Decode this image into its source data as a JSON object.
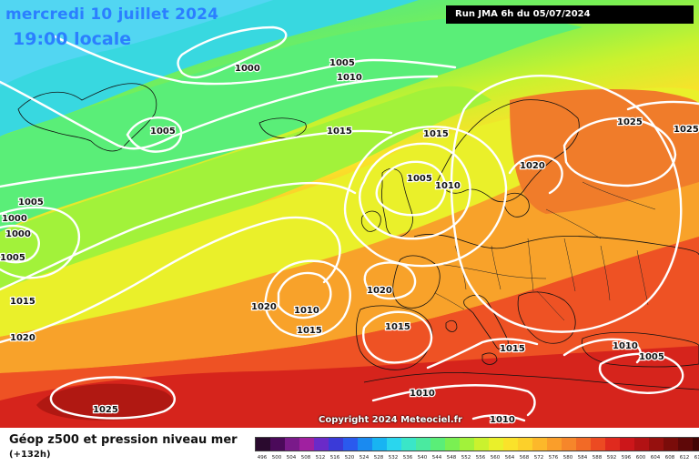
{
  "header": {
    "date": "mercredi 10 juillet 2024",
    "time": "19:00 locale",
    "run": "Run JMA 6h du 05/07/2024"
  },
  "copyright": "Copyright 2024 Meteociel.fr",
  "legend": {
    "title": "Géop z500 et pression niveau mer",
    "subtitle": "(+132h)",
    "ticks": [
      "496",
      "500",
      "504",
      "508",
      "512",
      "516",
      "520",
      "524",
      "528",
      "532",
      "536",
      "540",
      "544",
      "548",
      "552",
      "556",
      "560",
      "564",
      "568",
      "572",
      "576",
      "580",
      "584",
      "588",
      "592",
      "596",
      "600",
      "604",
      "608",
      "612",
      "616"
    ],
    "colors": [
      "#2a0a2e",
      "#4b0a5a",
      "#7a1a8a",
      "#a020a0",
      "#6a2ac8",
      "#3a3ad8",
      "#2a5aee",
      "#1a8af0",
      "#18b4f2",
      "#2ad6ee",
      "#3ae6c8",
      "#4aeaa0",
      "#5aee78",
      "#7af052",
      "#a2f23a",
      "#caf22e",
      "#eaf02a",
      "#fae22a",
      "#fcd02a",
      "#fcb82a",
      "#fa9e2a",
      "#f6862a",
      "#f26a26",
      "#ec4a22",
      "#e02a1e",
      "#cc161a",
      "#b21214",
      "#96100e",
      "#7a0c0a",
      "#5e0808",
      "#420404"
    ]
  },
  "isobars": {
    "labels": [
      "1000",
      "1005",
      "1010",
      "1005",
      "1015",
      "1015",
      "1005",
      "1010",
      "1025",
      "1025",
      "1020",
      "1005",
      "1000",
      "1000",
      "1005",
      "1015",
      "1020",
      "1020",
      "1010",
      "1015",
      "1020",
      "1015",
      "1015",
      "1010",
      "1005",
      "1025",
      "1010",
      "1010"
    ]
  }
}
